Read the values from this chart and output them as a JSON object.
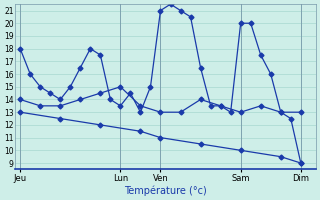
{
  "xlabel": "Température (°c)",
  "background_color": "#ceeee8",
  "grid_color": "#a8d8d0",
  "line_color": "#1a3aaa",
  "ylim": [
    8.5,
    21.5
  ],
  "yticks": [
    9,
    10,
    11,
    12,
    13,
    14,
    15,
    16,
    17,
    18,
    19,
    20,
    21
  ],
  "day_labels": [
    "Jeu",
    "Lun",
    "Ven",
    "Sam",
    "Dim"
  ],
  "day_positions": [
    0,
    10,
    14,
    22,
    28
  ],
  "xlim": [
    -0.5,
    29.5
  ],
  "series1_x": [
    0,
    1,
    2,
    3,
    4,
    5,
    6,
    7,
    8,
    9,
    10,
    11,
    12,
    13,
    14,
    15,
    16,
    17,
    18,
    19,
    20,
    21,
    22,
    23,
    24,
    25,
    26,
    27,
    28
  ],
  "series1_y": [
    18,
    16,
    15,
    14.5,
    14,
    15,
    16.5,
    18,
    17.5,
    14,
    13.5,
    14.5,
    13,
    15,
    21,
    21.5,
    21,
    20.5,
    16.5,
    13.5,
    13.5,
    13,
    20,
    20,
    17.5,
    16,
    13,
    12.5,
    9
  ],
  "series2_x": [
    0,
    2,
    4,
    6,
    8,
    10,
    12,
    14,
    16,
    18,
    20,
    22,
    24,
    26,
    28
  ],
  "series2_y": [
    14,
    13.5,
    13.5,
    14,
    14.5,
    15,
    13.5,
    13,
    13,
    14,
    13.5,
    13,
    13.5,
    13,
    13
  ],
  "series3_x": [
    0,
    4,
    8,
    12,
    14,
    18,
    22,
    26,
    28
  ],
  "series3_y": [
    13,
    12.5,
    12,
    11.5,
    11,
    10.5,
    10,
    9.5,
    9
  ]
}
